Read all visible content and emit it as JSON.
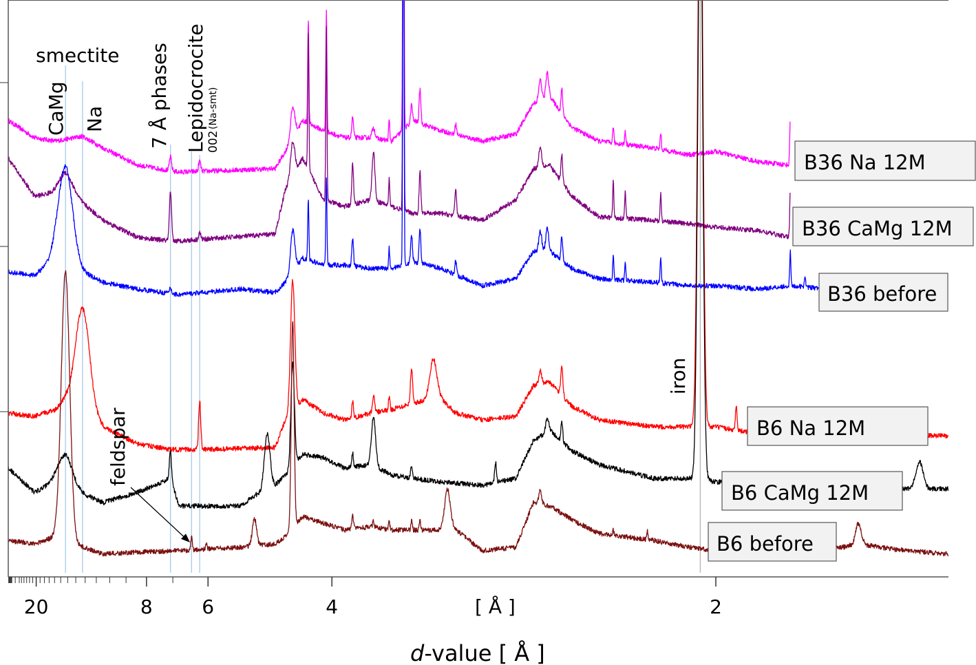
{
  "chart_data": {
    "type": "line",
    "title": "",
    "xlabel_prefix": "d",
    "xlabel_suffix": "-value [ Å ]",
    "x_unit_label": "[ Å ]",
    "ylabel": "",
    "x_scale": "2theta CuKa (d-value ticks)",
    "xlim_d": [
      32.3,
      1.557
    ],
    "ylim": [
      0,
      838
    ],
    "major_ticks": [
      20,
      8,
      6,
      4,
      2
    ],
    "major_tick_labels": [
      "20",
      "8",
      "6",
      "4",
      "2"
    ],
    "minor_ticks": [
      30,
      28,
      26,
      25,
      24,
      23,
      22,
      21,
      19,
      18,
      17,
      16,
      15,
      14,
      13,
      12,
      11,
      10,
      9,
      7
    ],
    "y_ticks": [
      240,
      480,
      718
    ],
    "reference_lines": [
      {
        "name": "smectite CaMg",
        "d": 14.3,
        "color": "#9ec5ea"
      },
      {
        "name": "smectite Na",
        "d": 12.26,
        "color": "#9ec5ea"
      },
      {
        "name": "7 Å phases",
        "d": 7.08,
        "color": "#9ec5ea"
      },
      {
        "name": "feldspar",
        "d": 6.43,
        "color": "#9ec5ea"
      },
      {
        "name": "Lepidocrocite",
        "d": 6.21,
        "color": "#9ec5ea"
      },
      {
        "name": "iron",
        "d": 2.04,
        "color": "#b0b0b0"
      }
    ],
    "annotations": {
      "smectite": "smectite",
      "camg": "CaMg",
      "na": "Na",
      "seven_a": "7 Å phases",
      "lepidocrocite": "Lepidocrocite",
      "na_smt_index": "002",
      "na_smt": "(Na-smt)",
      "feldspar": "feldspar",
      "iron": "iron"
    },
    "series": [
      {
        "name": "B36 Na 12M",
        "color": "#ff00ff",
        "d_end": 1.83,
        "background": [
          [
            32.3,
            663
          ],
          [
            20.5,
            638
          ],
          [
            15.9,
            633
          ],
          [
            12.26,
            640
          ],
          [
            10.46,
            623
          ],
          [
            8.4,
            598
          ],
          [
            6.8,
            588
          ],
          [
            4.72,
            593
          ],
          [
            4.57,
            618
          ],
          [
            4.34,
            663
          ],
          [
            4.09,
            648
          ],
          [
            3.87,
            638
          ],
          [
            3.62,
            638
          ],
          [
            3.45,
            633
          ],
          [
            3.29,
            663
          ],
          [
            3.1,
            648
          ],
          [
            2.86,
            633
          ],
          [
            2.69,
            643
          ],
          [
            2.61,
            688
          ],
          [
            2.54,
            698
          ],
          [
            2.45,
            653
          ],
          [
            2.35,
            633
          ],
          [
            2.17,
            623
          ],
          [
            2.07,
            613
          ],
          [
            2.0,
            618
          ],
          [
            1.9,
            603
          ],
          [
            1.83,
            598
          ]
        ],
        "peaks": [
          [
            7.08,
            20,
            0.15
          ],
          [
            6.21,
            15,
            0.15
          ],
          [
            4.47,
            45,
            0.3
          ],
          [
            4.27,
            150,
            0.08
          ],
          [
            4.06,
            175,
            0.08
          ],
          [
            3.79,
            30,
            0.12
          ],
          [
            3.6,
            15,
            0.2
          ],
          [
            3.47,
            30,
            0.08
          ],
          [
            3.36,
            700,
            0.08
          ],
          [
            3.3,
            25,
            0.12
          ],
          [
            3.24,
            50,
            0.12
          ],
          [
            3.01,
            15,
            0.12
          ],
          [
            2.58,
            30,
            0.2
          ],
          [
            2.55,
            35,
            0.2
          ],
          [
            2.49,
            35,
            0.12
          ],
          [
            2.3,
            25,
            0.08
          ],
          [
            2.26,
            20,
            0.08
          ],
          [
            2.15,
            25,
            0.08
          ],
          [
            1.83,
            70,
            0.08
          ]
        ]
      },
      {
        "name": "B36 CaMg 12M",
        "color": "#800080",
        "d_end": 1.83,
        "background": [
          [
            32.3,
            608
          ],
          [
            20.5,
            553
          ],
          [
            15.9,
            558
          ],
          [
            14.3,
            568
          ],
          [
            12.26,
            543
          ],
          [
            10.46,
            518
          ],
          [
            8.4,
            493
          ],
          [
            7.08,
            488
          ],
          [
            6.8,
            488
          ],
          [
            4.72,
            498
          ],
          [
            4.57,
            563
          ],
          [
            4.34,
            608
          ],
          [
            4.09,
            548
          ],
          [
            3.87,
            538
          ],
          [
            3.62,
            548
          ],
          [
            3.45,
            538
          ],
          [
            3.29,
            528
          ],
          [
            3.1,
            528
          ],
          [
            2.86,
            518
          ],
          [
            2.69,
            548
          ],
          [
            2.61,
            593
          ],
          [
            2.54,
            598
          ],
          [
            2.45,
            553
          ],
          [
            2.35,
            523
          ],
          [
            2.17,
            518
          ],
          [
            2.07,
            513
          ],
          [
            2.0,
            508
          ],
          [
            1.9,
            503
          ],
          [
            1.83,
            493
          ]
        ],
        "peaks": [
          [
            14.3,
            20,
            1.0
          ],
          [
            7.08,
            70,
            0.15
          ],
          [
            6.21,
            10,
            0.15
          ],
          [
            4.47,
            50,
            0.3
          ],
          [
            4.27,
            200,
            0.08
          ],
          [
            4.06,
            250,
            0.08
          ],
          [
            3.79,
            60,
            0.12
          ],
          [
            3.6,
            70,
            0.2
          ],
          [
            3.47,
            40,
            0.08
          ],
          [
            3.36,
            700,
            0.08
          ],
          [
            3.24,
            60,
            0.12
          ],
          [
            3.01,
            40,
            0.12
          ],
          [
            2.58,
            30,
            0.2
          ],
          [
            2.49,
            40,
            0.12
          ],
          [
            2.3,
            55,
            0.08
          ],
          [
            2.26,
            40,
            0.08
          ],
          [
            2.15,
            40,
            0.08
          ],
          [
            1.83,
            70,
            0.08
          ]
        ]
      },
      {
        "name": "B36 before",
        "color": "#0000ff",
        "d_end": 1.76,
        "background": [
          [
            32.3,
            443
          ],
          [
            20.5,
            438
          ],
          [
            15.9,
            463
          ],
          [
            10.46,
            428
          ],
          [
            8.4,
            418
          ],
          [
            6.8,
            410
          ],
          [
            5.3,
            418
          ],
          [
            4.72,
            413
          ],
          [
            4.57,
            428
          ],
          [
            4.34,
            463
          ],
          [
            4.09,
            453
          ],
          [
            3.87,
            453
          ],
          [
            3.62,
            448
          ],
          [
            3.45,
            448
          ],
          [
            3.29,
            458
          ],
          [
            3.1,
            448
          ],
          [
            2.86,
            423
          ],
          [
            2.69,
            433
          ],
          [
            2.61,
            473
          ],
          [
            2.54,
            473
          ],
          [
            2.45,
            448
          ],
          [
            2.35,
            433
          ],
          [
            2.17,
            428
          ],
          [
            2.07,
            423
          ],
          [
            2.0,
            423
          ],
          [
            1.9,
            418
          ],
          [
            1.83,
            423
          ],
          [
            1.76,
            418
          ]
        ],
        "peaks": [
          [
            14.3,
            140,
            1.0
          ],
          [
            7.08,
            8,
            0.15
          ],
          [
            4.47,
            60,
            0.3
          ],
          [
            4.27,
            90,
            0.08
          ],
          [
            4.06,
            130,
            0.08
          ],
          [
            3.79,
            40,
            0.12
          ],
          [
            3.47,
            30,
            0.08
          ],
          [
            3.36,
            700,
            0.08
          ],
          [
            3.3,
            40,
            0.12
          ],
          [
            3.24,
            50,
            0.12
          ],
          [
            3.01,
            20,
            0.12
          ],
          [
            2.58,
            30,
            0.2
          ],
          [
            2.55,
            35,
            0.2
          ],
          [
            2.49,
            35,
            0.12
          ],
          [
            2.3,
            35,
            0.08
          ],
          [
            2.26,
            25,
            0.08
          ],
          [
            2.15,
            35,
            0.08
          ],
          [
            1.83,
            50,
            0.08
          ],
          [
            1.8,
            15,
            0.1
          ]
        ]
      },
      {
        "name": "B6 Na 12M",
        "color": "#ff0000",
        "d_end": 1.557,
        "background": [
          [
            32.3,
            238
          ],
          [
            20.5,
            233
          ],
          [
            15.9,
            243
          ],
          [
            14.3,
            258
          ],
          [
            10.46,
            218
          ],
          [
            8.4,
            193
          ],
          [
            7.08,
            185
          ],
          [
            6.04,
            185
          ],
          [
            4.72,
            188
          ],
          [
            4.57,
            228
          ],
          [
            4.34,
            258
          ],
          [
            4.09,
            238
          ],
          [
            3.87,
            228
          ],
          [
            3.62,
            238
          ],
          [
            3.45,
            243
          ],
          [
            3.29,
            253
          ],
          [
            3.1,
            258
          ],
          [
            3.01,
            238
          ],
          [
            2.86,
            228
          ],
          [
            2.69,
            233
          ],
          [
            2.61,
            278
          ],
          [
            2.54,
            283
          ],
          [
            2.45,
            248
          ],
          [
            2.35,
            228
          ],
          [
            2.17,
            218
          ],
          [
            2.07,
            218
          ],
          [
            2.0,
            218
          ],
          [
            1.9,
            208
          ],
          [
            1.7,
            205
          ],
          [
            1.557,
            205
          ]
        ],
        "peaks": [
          [
            12.26,
            150,
            1.0
          ],
          [
            6.21,
            70,
            0.15
          ],
          [
            4.47,
            190,
            0.3
          ],
          [
            3.79,
            25,
            0.12
          ],
          [
            3.6,
            25,
            0.15
          ],
          [
            3.47,
            20,
            0.1
          ],
          [
            3.3,
            50,
            0.15
          ],
          [
            3.15,
            60,
            0.5
          ],
          [
            2.58,
            20,
            0.2
          ],
          [
            2.49,
            40,
            0.15
          ],
          [
            2.04,
            900,
            0.35
          ],
          [
            1.95,
            35,
            0.12
          ]
        ]
      },
      {
        "name": "B6 CaMg 12M",
        "color": "#000000",
        "d_end": 1.557,
        "background": [
          [
            32.3,
            158
          ],
          [
            20.5,
            123
          ],
          [
            15.9,
            138
          ],
          [
            10.46,
            108
          ],
          [
            8.4,
            123
          ],
          [
            7.08,
            143
          ],
          [
            6.8,
            103
          ],
          [
            5.3,
            103
          ],
          [
            5.05,
            118
          ],
          [
            4.72,
            133
          ],
          [
            4.57,
            148
          ],
          [
            4.34,
            178
          ],
          [
            4.09,
            173
          ],
          [
            3.87,
            158
          ],
          [
            3.62,
            163
          ],
          [
            3.45,
            148
          ],
          [
            3.29,
            143
          ],
          [
            3.1,
            138
          ],
          [
            2.86,
            133
          ],
          [
            2.69,
            143
          ],
          [
            2.61,
            198
          ],
          [
            2.54,
            213
          ],
          [
            2.45,
            183
          ],
          [
            2.35,
            163
          ],
          [
            2.17,
            143
          ],
          [
            2.07,
            143
          ],
          [
            2.0,
            138
          ],
          [
            1.7,
            133
          ],
          [
            1.64,
            128
          ],
          [
            1.557,
            128
          ]
        ],
        "peaks": [
          [
            14.3,
            45,
            1.0
          ],
          [
            7.08,
            40,
            0.15
          ],
          [
            4.84,
            80,
            0.4
          ],
          [
            4.47,
            150,
            0.25
          ],
          [
            3.79,
            20,
            0.12
          ],
          [
            3.6,
            70,
            0.3
          ],
          [
            3.3,
            15,
            0.15
          ],
          [
            2.79,
            30,
            0.12
          ],
          [
            2.55,
            20,
            0.2
          ],
          [
            2.49,
            30,
            0.12
          ],
          [
            2.04,
            900,
            0.35
          ],
          [
            1.6,
            40,
            0.5
          ]
        ]
      },
      {
        "name": "B6 before",
        "color": "#7b1010",
        "d_end": 1.557,
        "background": [
          [
            32.3,
            53
          ],
          [
            20.5,
            48
          ],
          [
            15.9,
            58
          ],
          [
            10.46,
            33
          ],
          [
            8.4,
            36
          ],
          [
            6.8,
            38
          ],
          [
            5.3,
            43
          ],
          [
            4.72,
            48
          ],
          [
            4.57,
            58
          ],
          [
            4.34,
            88
          ],
          [
            4.09,
            78
          ],
          [
            3.87,
            68
          ],
          [
            3.62,
            73
          ],
          [
            3.45,
            68
          ],
          [
            3.29,
            68
          ],
          [
            3.1,
            68
          ],
          [
            3.06,
            78
          ],
          [
            2.86,
            38
          ],
          [
            2.69,
            43
          ],
          [
            2.61,
            108
          ],
          [
            2.54,
            103
          ],
          [
            2.45,
            83
          ],
          [
            2.35,
            63
          ],
          [
            2.17,
            53
          ],
          [
            2.07,
            43
          ],
          [
            2.0,
            38
          ],
          [
            1.76,
            38
          ],
          [
            1.7,
            48
          ],
          [
            1.64,
            40
          ],
          [
            1.557,
            33
          ]
        ],
        "peaks": [
          [
            14.3,
            390,
            0.6
          ],
          [
            6.43,
            20,
            0.1
          ],
          [
            6.04,
            8,
            0.1
          ],
          [
            5.05,
            40,
            0.3
          ],
          [
            4.47,
            300,
            0.2
          ],
          [
            3.79,
            20,
            0.12
          ],
          [
            3.6,
            10,
            0.1
          ],
          [
            3.47,
            12,
            0.1
          ],
          [
            3.3,
            15,
            0.1
          ],
          [
            3.24,
            15,
            0.1
          ],
          [
            3.06,
            50,
            0.4
          ],
          [
            2.58,
            20,
            0.2
          ],
          [
            2.3,
            8,
            0.1
          ],
          [
            2.19,
            12,
            0.1
          ],
          [
            1.7,
            30,
            0.4
          ]
        ]
      }
    ]
  }
}
